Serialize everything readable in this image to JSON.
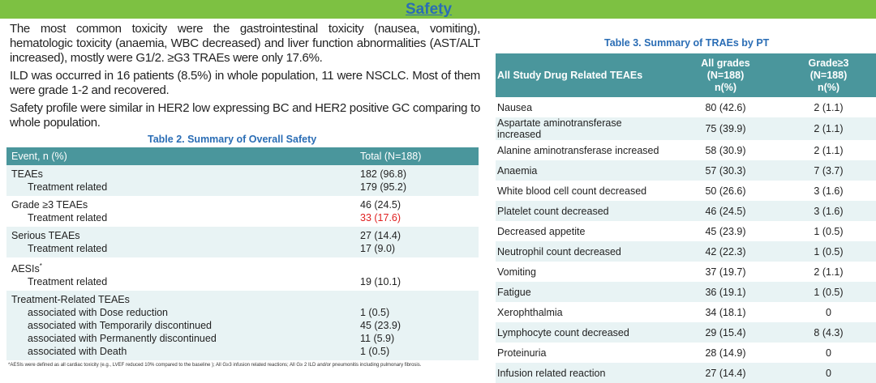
{
  "banner": {
    "title": "Safety"
  },
  "paragraphs": [
    "The most common toxicity were the gastrointestinal toxicity (nausea, vomiting), hematologic toxicity (anaemia, WBC decreased) and liver function abnormalities (AST/ALT increased), mostly were G1/2.  ≥G3 TRAEs were only 17.6%.",
    "ILD was occurred in 16 patients (8.5%) in whole population, 11 were NSCLC. Most of them were grade 1-2 and recovered.",
    "Safety profile were similar in HER2 low expressing BC and HER2 positive GC comparing to whole population."
  ],
  "table2": {
    "caption": "Table 2. Summary of Overall Safety",
    "headers": [
      "Event, n (%)",
      "Total (N=188)"
    ],
    "groups": [
      {
        "rows": [
          {
            "label": "TEAEs",
            "value": "182 (96.8)"
          },
          {
            "label": "Treatment related",
            "value": "179 (95.2)"
          }
        ]
      },
      {
        "rows": [
          {
            "label": "Grade ≥3 TEAEs",
            "value": "46 (24.5)"
          },
          {
            "label": "Treatment related",
            "value": "33 (17.6)"
          }
        ]
      },
      {
        "rows": [
          {
            "label": "Serious TEAEs",
            "value": "27 (14.4)"
          },
          {
            "label": "Treatment related",
            "value": "17 (9.0)"
          }
        ]
      },
      {
        "rows": [
          {
            "label": "AESIs",
            "sup": "*",
            "value": ""
          },
          {
            "label": "Treatment related",
            "value": "19 (10.1)"
          }
        ]
      },
      {
        "rows": [
          {
            "label": "Treatment-Related TEAEs",
            "value": ""
          },
          {
            "label": "associated with Dose reduction",
            "value": "1 (0.5)"
          },
          {
            "label": "associated with Temporarily discontinued",
            "value": "45 (23.9)"
          },
          {
            "label": "associated with Permanently discontinued",
            "value": "11 (5.9)"
          },
          {
            "label": "associated with Death",
            "value": "1 (0.5)"
          }
        ]
      }
    ],
    "highlight_color": "#e02020",
    "footnote": "*AESIs were defined as all cardiac toxicity (e.g., LVEF reduced 10% compared to the baseline ); All G≥3 infusion related reactions; All G≥ 2 ILD and/or pneumonitis including pulmonary fibrosis."
  },
  "table3": {
    "caption": "Table 3. Summary of TRAEs by PT",
    "headers": [
      "All Study Drug Related TEAEs",
      "All grades\n(N=188)\nn(%)",
      "Grade≥3\n(N=188)\nn(%)"
    ],
    "rows": [
      [
        "Nausea",
        "80 (42.6)",
        "2 (1.1)"
      ],
      [
        "Aspartate aminotransferase increased",
        "75 (39.9)",
        "2 (1.1)"
      ],
      [
        "Alanine aminotransferase increased",
        "58 (30.9)",
        "2 (1.1)"
      ],
      [
        "Anaemia",
        "57 (30.3)",
        "7 (3.7)"
      ],
      [
        "White blood cell count decreased",
        "50 (26.6)",
        "3 (1.6)"
      ],
      [
        "Platelet count decreased",
        "46 (24.5)",
        "3 (1.6)"
      ],
      [
        "Decreased appetite",
        "45 (23.9)",
        "1 (0.5)"
      ],
      [
        "Neutrophil count decreased",
        "42 (22.3)",
        "1 (0.5)"
      ],
      [
        "Vomiting",
        "37 (19.7)",
        "2 (1.1)"
      ],
      [
        "Fatigue",
        "36 (19.1)",
        "1 (0.5)"
      ],
      [
        "Xerophthalmia",
        "34 (18.1)",
        "0"
      ],
      [
        "Lymphocyte count decreased",
        "29 (15.4)",
        "8 (4.3)"
      ],
      [
        "Proteinuria",
        "28 (14.9)",
        "0"
      ],
      [
        "Infusion related reaction",
        "27 (14.4)",
        "0"
      ]
    ]
  },
  "colors": {
    "banner": "#7dc142",
    "table_header": "#4a969c",
    "row_shade": "#e8f3f4",
    "caption": "#2a6db5"
  }
}
